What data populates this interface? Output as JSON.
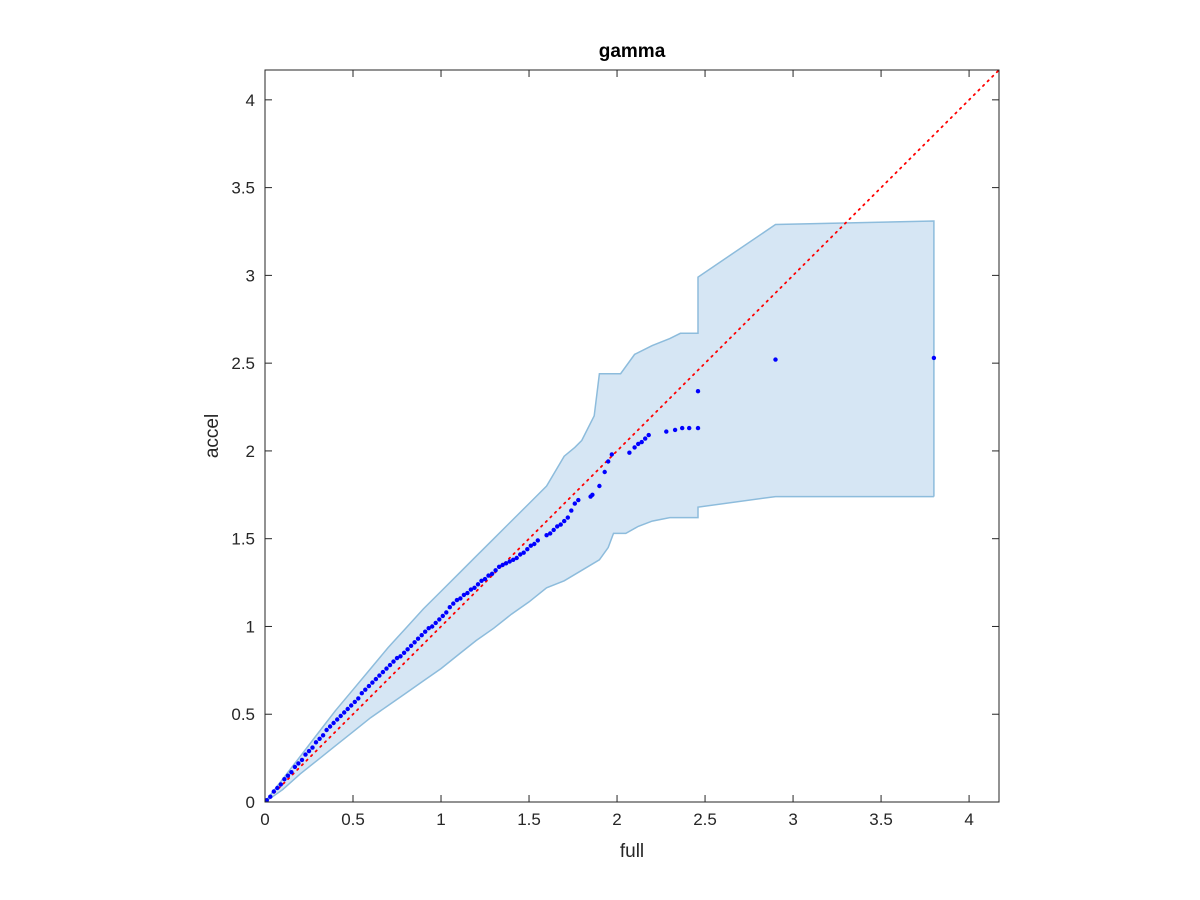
{
  "chart_data": {
    "type": "scatter",
    "title": "gamma",
    "xlabel": "full",
    "ylabel": "accel",
    "xlim": [
      0,
      4.17
    ],
    "ylim": [
      0,
      4.17
    ],
    "xticks": [
      "0",
      "0.5",
      "1",
      "1.5",
      "2",
      "2.5",
      "3",
      "3.5",
      "4"
    ],
    "yticks": [
      "0",
      "0.5",
      "1",
      "1.5",
      "2",
      "2.5",
      "3",
      "3.5",
      "4"
    ],
    "grid": false,
    "reference_line": {
      "style": "dotted",
      "color": "#ff0000",
      "slope": 1,
      "intercept": 0
    },
    "band": {
      "color_fill": "#d6e6f4",
      "color_edge": "#8dbcdc",
      "upper": [
        [
          0,
          0
        ],
        [
          0.1,
          0.13
        ],
        [
          0.2,
          0.26
        ],
        [
          0.3,
          0.39
        ],
        [
          0.4,
          0.52
        ],
        [
          0.5,
          0.64
        ],
        [
          0.6,
          0.76
        ],
        [
          0.7,
          0.88
        ],
        [
          0.8,
          0.99
        ],
        [
          0.9,
          1.1
        ],
        [
          1.0,
          1.2
        ],
        [
          1.1,
          1.3
        ],
        [
          1.2,
          1.4
        ],
        [
          1.3,
          1.5
        ],
        [
          1.4,
          1.6
        ],
        [
          1.5,
          1.7
        ],
        [
          1.6,
          1.8
        ],
        [
          1.7,
          1.97
        ],
        [
          1.76,
          2.02
        ],
        [
          1.8,
          2.06
        ],
        [
          1.87,
          2.2
        ],
        [
          1.9,
          2.44
        ],
        [
          2.02,
          2.44
        ],
        [
          2.1,
          2.55
        ],
        [
          2.2,
          2.6
        ],
        [
          2.3,
          2.64
        ],
        [
          2.36,
          2.67
        ],
        [
          2.46,
          2.67
        ],
        [
          2.46,
          2.99
        ],
        [
          2.9,
          3.29
        ],
        [
          3.8,
          3.31
        ]
      ],
      "lower": [
        [
          0,
          0
        ],
        [
          0.1,
          0.07
        ],
        [
          0.2,
          0.16
        ],
        [
          0.3,
          0.24
        ],
        [
          0.4,
          0.32
        ],
        [
          0.5,
          0.4
        ],
        [
          0.6,
          0.48
        ],
        [
          0.7,
          0.55
        ],
        [
          0.8,
          0.62
        ],
        [
          0.9,
          0.69
        ],
        [
          1.0,
          0.76
        ],
        [
          1.1,
          0.84
        ],
        [
          1.2,
          0.92
        ],
        [
          1.3,
          0.99
        ],
        [
          1.4,
          1.07
        ],
        [
          1.5,
          1.14
        ],
        [
          1.6,
          1.22
        ],
        [
          1.7,
          1.26
        ],
        [
          1.8,
          1.32
        ],
        [
          1.9,
          1.38
        ],
        [
          1.95,
          1.45
        ],
        [
          1.98,
          1.53
        ],
        [
          2.05,
          1.53
        ],
        [
          2.12,
          1.57
        ],
        [
          2.2,
          1.6
        ],
        [
          2.3,
          1.62
        ],
        [
          2.46,
          1.62
        ],
        [
          2.46,
          1.68
        ],
        [
          2.9,
          1.74
        ],
        [
          3.8,
          1.74
        ]
      ]
    },
    "series": [
      {
        "color": "#0000ff",
        "marker": "dot",
        "x": [
          0.01,
          0.03,
          0.05,
          0.07,
          0.09,
          0.11,
          0.13,
          0.15,
          0.17,
          0.19,
          0.21,
          0.23,
          0.25,
          0.27,
          0.29,
          0.31,
          0.33,
          0.35,
          0.37,
          0.39,
          0.41,
          0.43,
          0.45,
          0.47,
          0.49,
          0.51,
          0.53,
          0.55,
          0.57,
          0.59,
          0.61,
          0.63,
          0.65,
          0.67,
          0.69,
          0.71,
          0.73,
          0.75,
          0.77,
          0.79,
          0.81,
          0.83,
          0.85,
          0.87,
          0.89,
          0.91,
          0.93,
          0.95,
          0.97,
          0.99,
          1.01,
          1.03,
          1.05,
          1.07,
          1.09,
          1.11,
          1.13,
          1.15,
          1.17,
          1.19,
          1.21,
          1.23,
          1.25,
          1.27,
          1.29,
          1.31,
          1.33,
          1.35,
          1.37,
          1.39,
          1.41,
          1.43,
          1.45,
          1.47,
          1.49,
          1.51,
          1.53,
          1.55,
          1.6,
          1.62,
          1.64,
          1.66,
          1.68,
          1.7,
          1.72,
          1.74,
          1.76,
          1.78,
          1.85,
          1.86,
          1.9,
          1.93,
          1.95,
          1.97,
          2.07,
          2.1,
          2.12,
          2.14,
          2.16,
          2.18,
          2.28,
          2.33,
          2.37,
          2.41,
          2.46,
          2.46,
          2.9,
          3.8
        ],
        "y": [
          0.01,
          0.03,
          0.06,
          0.08,
          0.1,
          0.13,
          0.15,
          0.17,
          0.2,
          0.22,
          0.24,
          0.27,
          0.29,
          0.31,
          0.34,
          0.36,
          0.38,
          0.41,
          0.43,
          0.45,
          0.47,
          0.49,
          0.51,
          0.53,
          0.55,
          0.57,
          0.59,
          0.62,
          0.64,
          0.66,
          0.68,
          0.7,
          0.72,
          0.74,
          0.76,
          0.78,
          0.8,
          0.82,
          0.83,
          0.85,
          0.87,
          0.89,
          0.91,
          0.93,
          0.95,
          0.97,
          0.99,
          1.0,
          1.02,
          1.04,
          1.06,
          1.08,
          1.11,
          1.13,
          1.15,
          1.16,
          1.18,
          1.19,
          1.21,
          1.22,
          1.24,
          1.26,
          1.27,
          1.29,
          1.3,
          1.32,
          1.34,
          1.35,
          1.36,
          1.37,
          1.38,
          1.39,
          1.41,
          1.42,
          1.44,
          1.46,
          1.47,
          1.49,
          1.52,
          1.53,
          1.55,
          1.57,
          1.58,
          1.6,
          1.62,
          1.66,
          1.7,
          1.72,
          1.74,
          1.75,
          1.8,
          1.88,
          1.94,
          1.98,
          1.99,
          2.02,
          2.04,
          2.05,
          2.07,
          2.09,
          2.11,
          2.12,
          2.13,
          2.13,
          2.13,
          2.34,
          2.52,
          2.53
        ]
      }
    ]
  }
}
